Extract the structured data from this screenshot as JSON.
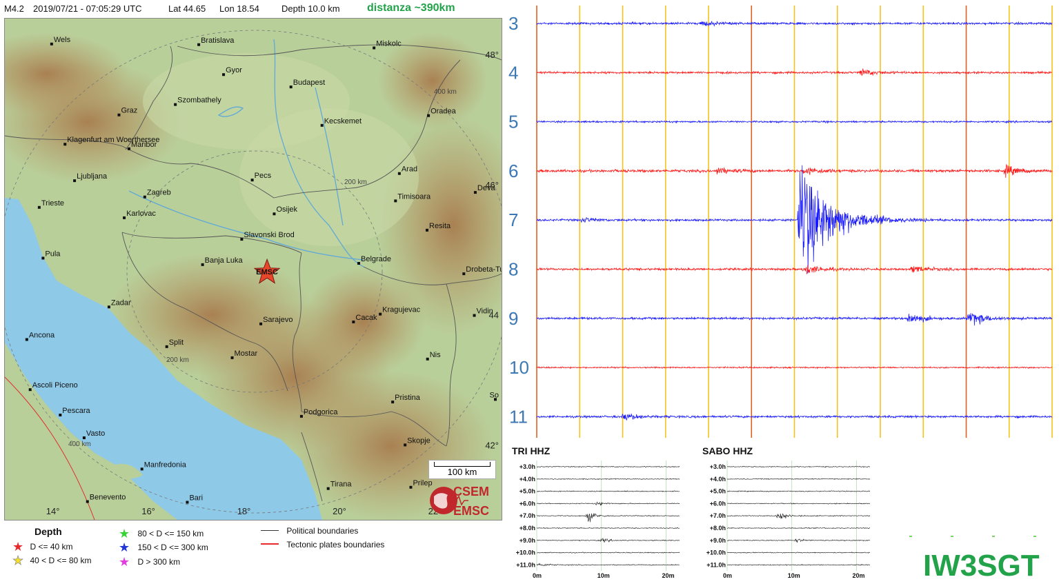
{
  "header": {
    "magnitude": "M4.2",
    "datetime": "2019/07/21 - 07:05:29 UTC",
    "lat": "Lat 44.65",
    "lon": "Lon  18.54",
    "depth": "Depth   10.0 km",
    "distance": "distanza ~390km"
  },
  "map": {
    "colors": {
      "land": "#b9cf9a",
      "mountains": "#b58a57",
      "sea": "#8ec9e8",
      "epicenter": "#e8462a"
    },
    "cities": [
      {
        "name": "Wels",
        "lon": 14.03,
        "lat": 48.16
      },
      {
        "name": "Bratislava",
        "lon": 17.11,
        "lat": 48.15
      },
      {
        "name": "Miskolc",
        "lon": 20.78,
        "lat": 48.1
      },
      {
        "name": "Gyor",
        "lon": 17.63,
        "lat": 47.69
      },
      {
        "name": "Budapest",
        "lon": 19.04,
        "lat": 47.5
      },
      {
        "name": "Szombathely",
        "lon": 16.62,
        "lat": 47.23
      },
      {
        "name": "Graz",
        "lon": 15.44,
        "lat": 47.07
      },
      {
        "name": "Oradea",
        "lon": 21.92,
        "lat": 47.06
      },
      {
        "name": "Kecskemet",
        "lon": 19.69,
        "lat": 46.91
      },
      {
        "name": "Klagenfurt am Woerthersee",
        "lon": 14.31,
        "lat": 46.62
      },
      {
        "name": "Maribor",
        "lon": 15.65,
        "lat": 46.55
      },
      {
        "name": "Ljubljana",
        "lon": 14.51,
        "lat": 46.06
      },
      {
        "name": "Pecs",
        "lon": 18.23,
        "lat": 46.07
      },
      {
        "name": "Arad",
        "lon": 21.31,
        "lat": 46.17
      },
      {
        "name": "Deva",
        "lon": 22.9,
        "lat": 45.88
      },
      {
        "name": "Zagreb",
        "lon": 15.98,
        "lat": 45.81
      },
      {
        "name": "Trieste",
        "lon": 13.77,
        "lat": 45.65
      },
      {
        "name": "Timisoara",
        "lon": 21.23,
        "lat": 45.75
      },
      {
        "name": "Karlovac",
        "lon": 15.55,
        "lat": 45.49
      },
      {
        "name": "Osijek",
        "lon": 18.69,
        "lat": 45.55
      },
      {
        "name": "Resita",
        "lon": 21.89,
        "lat": 45.3
      },
      {
        "name": "Slavonski Brod",
        "lon": 18.01,
        "lat": 45.16
      },
      {
        "name": "Pula",
        "lon": 13.85,
        "lat": 44.87
      },
      {
        "name": "Banja Luka",
        "lon": 17.19,
        "lat": 44.77
      },
      {
        "name": "Belgrade",
        "lon": 20.46,
        "lat": 44.79
      },
      {
        "name": "Drobeta-Turnu",
        "lon": 22.66,
        "lat": 44.63
      },
      {
        "name": "Zadar",
        "lon": 15.23,
        "lat": 44.12
      },
      {
        "name": "Kragujevac",
        "lon": 20.91,
        "lat": 44.01
      },
      {
        "name": "Vidin",
        "lon": 22.88,
        "lat": 43.99
      },
      {
        "name": "Sarajevo",
        "lon": 18.41,
        "lat": 43.86
      },
      {
        "name": "Cacak",
        "lon": 20.35,
        "lat": 43.89
      },
      {
        "name": "Ancona",
        "lon": 13.51,
        "lat": 43.62
      },
      {
        "name": "Split",
        "lon": 16.44,
        "lat": 43.51
      },
      {
        "name": "Mostar",
        "lon": 17.81,
        "lat": 43.34
      },
      {
        "name": "Nis",
        "lon": 21.9,
        "lat": 43.32
      },
      {
        "name": "Ascoli Piceno",
        "lon": 13.58,
        "lat": 42.85
      },
      {
        "name": "Pristina",
        "lon": 21.17,
        "lat": 42.66
      },
      {
        "name": "So",
        "lon": 23.32,
        "lat": 42.7
      },
      {
        "name": "Pescara",
        "lon": 14.21,
        "lat": 42.46
      },
      {
        "name": "Podgorica",
        "lon": 19.26,
        "lat": 42.44
      },
      {
        "name": "Vasto",
        "lon": 14.71,
        "lat": 42.11
      },
      {
        "name": "Skopje",
        "lon": 21.43,
        "lat": 42.0
      },
      {
        "name": "Manfredonia",
        "lon": 15.92,
        "lat": 41.63
      },
      {
        "name": "Tirana",
        "lon": 19.82,
        "lat": 41.33
      },
      {
        "name": "Prilep",
        "lon": 21.55,
        "lat": 41.35
      },
      {
        "name": "Benevento",
        "lon": 14.78,
        "lat": 41.13
      },
      {
        "name": "Bari",
        "lon": 16.87,
        "lat": 41.12
      }
    ],
    "lon_labels": [
      "14°",
      "16°",
      "18°",
      "20°",
      "22"
    ],
    "lat_labels": [
      "48°",
      "46°",
      "44",
      "42°"
    ],
    "ring_labels": [
      "400 km",
      "200 km",
      "200 km",
      "400 km"
    ],
    "epicenter_label": "EMSC",
    "epicenter": {
      "lon": 18.54,
      "lat": 44.65
    },
    "scale_label": "100 km",
    "logo": {
      "top": "CSEM",
      "bottom": "EMSC"
    }
  },
  "legend": {
    "depth_title": "Depth",
    "items": [
      {
        "label": "D <= 40 km",
        "color": "#e8292a"
      },
      {
        "label": "40 < D <= 80 km",
        "color": "#f5e12a"
      },
      {
        "label": "80 < D <= 150 km",
        "color": "#35d335"
      },
      {
        "label": "150 < D <= 300 km",
        "color": "#2235d8"
      },
      {
        "label": "D > 300 km",
        "color": "#e23ce0"
      }
    ],
    "lines": [
      {
        "label": "Political boundaries",
        "color": "#333333"
      },
      {
        "label": "Tectonic plates boundaries",
        "color": "#e8292a"
      }
    ]
  },
  "chart_data": [
    {
      "type": "line",
      "title": "",
      "traces": [
        {
          "label": "3",
          "color": "#1a1aff",
          "amplitude": 0.12,
          "events": [
            {
              "t": 0.32,
              "a": 0.3
            }
          ]
        },
        {
          "label": "4",
          "color": "#ff1a1a",
          "amplitude": 0.12,
          "events": [
            {
              "t": 0.63,
              "a": 0.4
            }
          ]
        },
        {
          "label": "5",
          "color": "#1a1aff",
          "amplitude": 0.1,
          "events": []
        },
        {
          "label": "6",
          "color": "#ff1a1a",
          "amplitude": 0.15,
          "events": [
            {
              "t": 0.35,
              "a": 0.35
            },
            {
              "t": 0.52,
              "a": 0.5
            },
            {
              "t": 0.91,
              "a": 0.55
            }
          ]
        },
        {
          "label": "7",
          "color": "#1a1aff",
          "amplitude": 0.12,
          "events": [
            {
              "t": 0.09,
              "a": 0.3
            },
            {
              "t": 0.51,
              "a": 8.0
            }
          ]
        },
        {
          "label": "8",
          "color": "#ff1a1a",
          "amplitude": 0.13,
          "events": [
            {
              "t": 0.52,
              "a": 0.6
            },
            {
              "t": 0.73,
              "a": 0.4
            }
          ]
        },
        {
          "label": "9",
          "color": "#1a1aff",
          "amplitude": 0.13,
          "events": [
            {
              "t": 0.72,
              "a": 0.7
            },
            {
              "t": 0.84,
              "a": 0.9
            }
          ]
        },
        {
          "label": "10",
          "color": "#ff1a1a",
          "amplitude": 0.08,
          "events": []
        },
        {
          "label": "11",
          "color": "#1a1aff",
          "amplitude": 0.12,
          "events": [
            {
              "t": 0.17,
              "a": 0.45
            }
          ]
        }
      ],
      "gridlines": 13,
      "red_gridlines": [
        0,
        5,
        10
      ]
    },
    {
      "type": "line",
      "title": "TRI HHZ",
      "rows": [
        "+3.0h",
        "+4.0h",
        "+5.0h",
        "+6.0h",
        "+7.0h",
        "+8.0h",
        "+9.0h",
        "+10.0h",
        "+11.0h"
      ],
      "xticks": [
        "0m",
        "10m",
        "20m"
      ],
      "events": [
        {
          "row": 3,
          "t": 0.42,
          "a": 0.6
        },
        {
          "row": 4,
          "t": 0.36,
          "a": 1.6
        },
        {
          "row": 6,
          "t": 0.46,
          "a": 0.5
        },
        {
          "row": 8,
          "t": 0.02,
          "a": 0.6
        }
      ]
    },
    {
      "type": "line",
      "title": "SABO HHZ",
      "rows": [
        "+3.0h",
        "+4.0h",
        "+5.0h",
        "+6.0h",
        "+7.0h",
        "+8.0h",
        "+9.0h",
        "+10.0h",
        "+11.0h"
      ],
      "xticks": [
        "0m",
        "10m",
        "20m"
      ],
      "events": [
        {
          "row": 4,
          "t": 0.36,
          "a": 1.4
        },
        {
          "row": 6,
          "t": 0.48,
          "a": 0.5
        }
      ]
    }
  ],
  "callsign": "IW3SGT"
}
